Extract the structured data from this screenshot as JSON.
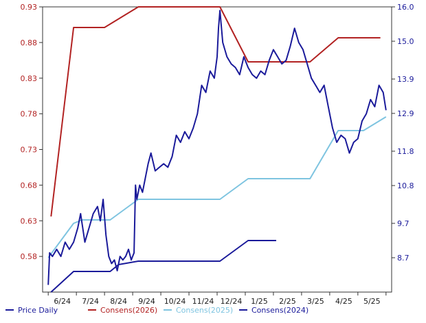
{
  "chart_data": {
    "type": "line",
    "title": "",
    "xlabel": "",
    "left_axis": {
      "ylim": [
        0.53,
        0.93
      ],
      "ticks": [
        "0.93",
        "0.88",
        "0.83",
        "0.78",
        "0.73",
        "0.68",
        "0.63",
        "0.58"
      ],
      "tick_values": [
        0.93,
        0.88,
        0.83,
        0.78,
        0.73,
        0.68,
        0.63,
        0.58
      ],
      "color": "#b22222"
    },
    "right_axis": {
      "ylim": [
        7.7,
        16.0
      ],
      "ticks": [
        "16.0",
        "15.0",
        "13.9",
        "12.9",
        "11.8",
        "10.8",
        "9.7",
        "8.7"
      ],
      "tick_values": [
        16.0,
        15.0,
        13.9,
        12.9,
        11.8,
        10.8,
        9.7,
        8.7
      ],
      "color": "#1a1a9a"
    },
    "x_axis": {
      "xlim": [
        -0.2,
        12.2
      ],
      "ticks": [
        "6/24",
        "7/24",
        "8/24",
        "9/24",
        "10/24",
        "11/24",
        "12/24",
        "1/25",
        "2/25",
        "3/25",
        "4/25",
        "5/25"
      ],
      "tick_values": [
        0.5,
        1.5,
        2.5,
        3.5,
        4.5,
        5.5,
        6.5,
        7.5,
        8.5,
        9.5,
        10.5,
        11.5
      ]
    },
    "grid": false,
    "legend": "bottom",
    "series": [
      {
        "name": "Price Daily",
        "axis": "left",
        "color": "#1a1a9a",
        "x": [
          0.0,
          0.05,
          0.15,
          0.3,
          0.45,
          0.6,
          0.75,
          0.9,
          1.05,
          1.15,
          1.3,
          1.45,
          1.6,
          1.75,
          1.85,
          1.95,
          2.05,
          2.15,
          2.25,
          2.35,
          2.45,
          2.55,
          2.65,
          2.75,
          2.85,
          2.95,
          3.05,
          3.1,
          3.15,
          3.25,
          3.35,
          3.45,
          3.55,
          3.65,
          3.8,
          3.95,
          4.1,
          4.25,
          4.4,
          4.55,
          4.7,
          4.85,
          5.0,
          5.15,
          5.3,
          5.45,
          5.6,
          5.75,
          5.9,
          6.0,
          6.05,
          6.1,
          6.2,
          6.35,
          6.5,
          6.65,
          6.8,
          6.95,
          7.1,
          7.25,
          7.4,
          7.55,
          7.7,
          7.85,
          8.0,
          8.15,
          8.3,
          8.45,
          8.6,
          8.75,
          8.9,
          9.05,
          9.2,
          9.35,
          9.5,
          9.65,
          9.8,
          9.95,
          10.1,
          10.25,
          10.4,
          10.55,
          10.7,
          10.85,
          11.0,
          11.15,
          11.3,
          11.45,
          11.6,
          11.75,
          11.9,
          12.0
        ],
        "y": [
          0.54,
          0.585,
          0.58,
          0.59,
          0.58,
          0.6,
          0.59,
          0.6,
          0.62,
          0.64,
          0.6,
          0.62,
          0.64,
          0.65,
          0.63,
          0.66,
          0.61,
          0.58,
          0.57,
          0.575,
          0.56,
          0.58,
          0.575,
          0.58,
          0.59,
          0.575,
          0.585,
          0.68,
          0.66,
          0.68,
          0.67,
          0.69,
          0.71,
          0.725,
          0.7,
          0.705,
          0.71,
          0.705,
          0.72,
          0.75,
          0.74,
          0.755,
          0.745,
          0.76,
          0.78,
          0.82,
          0.81,
          0.84,
          0.83,
          0.86,
          0.9,
          0.925,
          0.88,
          0.86,
          0.85,
          0.845,
          0.835,
          0.86,
          0.845,
          0.835,
          0.83,
          0.84,
          0.835,
          0.855,
          0.87,
          0.86,
          0.85,
          0.855,
          0.875,
          0.9,
          0.88,
          0.87,
          0.85,
          0.83,
          0.82,
          0.81,
          0.82,
          0.79,
          0.76,
          0.74,
          0.75,
          0.745,
          0.725,
          0.74,
          0.745,
          0.77,
          0.78,
          0.8,
          0.79,
          0.82,
          0.81,
          0.785
        ]
      },
      {
        "name": "Consens(2026)",
        "axis": "right",
        "color": "#b22222",
        "x": [
          0.1,
          0.9,
          2.0,
          3.2,
          6.1,
          7.1,
          8.4,
          9.3,
          10.3,
          11.8
        ],
        "y": [
          9.9,
          15.4,
          15.4,
          16.0,
          16.0,
          14.4,
          14.4,
          14.4,
          15.1,
          15.1
        ]
      },
      {
        "name": "Consens(2025)",
        "axis": "right",
        "color": "#7ec4e0",
        "x": [
          0.0,
          0.9,
          1.2,
          2.2,
          3.2,
          6.1,
          7.1,
          8.4,
          9.3,
          10.3,
          11.2,
          12.0
        ],
        "y": [
          8.7,
          9.7,
          9.8,
          9.8,
          10.4,
          10.4,
          11.0,
          11.0,
          11.0,
          12.4,
          12.4,
          12.8
        ]
      },
      {
        "name": "Consens(2024)",
        "axis": "right",
        "color": "#1a1a9a",
        "x": [
          0.1,
          0.9,
          1.1,
          2.2,
          2.5,
          3.2,
          4.1,
          5.1,
          6.1,
          7.1,
          8.1
        ],
        "y": [
          7.7,
          8.3,
          8.3,
          8.3,
          8.5,
          8.6,
          8.6,
          8.6,
          8.6,
          9.2,
          9.2
        ]
      }
    ]
  }
}
